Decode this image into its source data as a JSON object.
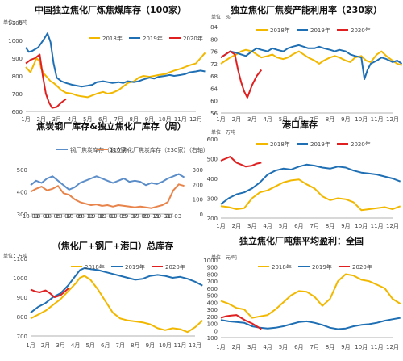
{
  "chart_data": [
    {
      "type": "line",
      "title": "中国独立焦化厂炼焦煤库存（100家）",
      "unit_label": "单位：万吨",
      "categories": [
        "1月",
        "2月",
        "3月",
        "4月",
        "5月",
        "6月",
        "7月",
        "8月",
        "9月",
        "10月",
        "11月",
        "12月"
      ],
      "ylim": [
        600,
        1100
      ],
      "yticks": [
        600,
        700,
        800,
        900,
        1000,
        1100
      ],
      "grid": false,
      "legend_position": "top-right",
      "series": [
        {
          "name": "2018年",
          "color": "#F2B800",
          "x": [
            0,
            0.3,
            0.5,
            0.7,
            0.9,
            1,
            1.2,
            1.4,
            1.6,
            1.8,
            2,
            2.3,
            2.6,
            3,
            3.3,
            3.6,
            4,
            4.3,
            4.6,
            5,
            5.3,
            5.6,
            6,
            6.3,
            6.6,
            7,
            7.3,
            7.6,
            8,
            8.3,
            8.6,
            9,
            9.3,
            9.6,
            10,
            10.3,
            10.6,
            11,
            11.3,
            11.6
          ],
          "values": [
            850,
            820,
            860,
            900,
            880,
            840,
            810,
            790,
            770,
            760,
            745,
            720,
            705,
            700,
            690,
            685,
            680,
            690,
            700,
            710,
            700,
            705,
            720,
            740,
            760,
            770,
            790,
            800,
            795,
            800,
            805,
            810,
            820,
            830,
            840,
            850,
            860,
            870,
            900,
            930
          ]
        },
        {
          "name": "2019年",
          "color": "#1F6FB4",
          "x": [
            0,
            0.2,
            0.4,
            0.6,
            0.8,
            1,
            1.2,
            1.4,
            1.6,
            1.8,
            2,
            2.3,
            2.6,
            3,
            3.3,
            3.6,
            4,
            4.3,
            4.6,
            5,
            5.3,
            5.6,
            6,
            6.3,
            6.6,
            7,
            7.3,
            7.6,
            8,
            8.3,
            8.6,
            9,
            9.3,
            9.6,
            10,
            10.3,
            10.6,
            11,
            11.3,
            11.6
          ],
          "values": [
            960,
            935,
            940,
            950,
            960,
            985,
            1010,
            1040,
            990,
            870,
            790,
            770,
            760,
            750,
            745,
            740,
            745,
            750,
            765,
            770,
            765,
            760,
            765,
            760,
            770,
            765,
            770,
            780,
            790,
            785,
            795,
            800,
            805,
            800,
            805,
            810,
            820,
            825,
            830,
            825
          ]
        },
        {
          "name": "2020年",
          "color": "#E02020",
          "x": [
            0,
            0.3,
            0.6,
            0.9,
            1.1,
            1.3,
            1.5,
            1.7,
            2,
            2.3,
            2.6
          ],
          "values": [
            870,
            890,
            900,
            920,
            800,
            700,
            650,
            620,
            625,
            650,
            670
          ]
        }
      ]
    },
    {
      "type": "line",
      "title": "独立焦化厂焦炭产能利用率（230家）",
      "unit_label": "单位：%",
      "categories": [
        "1月",
        "2月",
        "3月",
        "4月",
        "5月",
        "6月",
        "7月",
        "8月",
        "9月",
        "10月",
        "11月",
        "12月"
      ],
      "ylim": [
        56,
        84
      ],
      "yticks": [
        56,
        60,
        64,
        68,
        72,
        76,
        80,
        84
      ],
      "grid": false,
      "legend_position": "top-right",
      "series": [
        {
          "name": "2018年",
          "color": "#F2B800",
          "x": [
            0,
            0.3,
            0.6,
            1,
            1.3,
            1.6,
            2,
            2.3,
            2.6,
            3,
            3.3,
            3.6,
            4,
            4.3,
            4.6,
            5,
            5.3,
            5.6,
            6,
            6.3,
            6.6,
            7,
            7.3,
            7.6,
            8,
            8.3,
            8.6,
            9,
            9.3,
            9.6,
            10,
            10.3,
            10.6,
            11,
            11.3,
            11.6
          ],
          "values": [
            72,
            73,
            74,
            75,
            76,
            76.5,
            76,
            75,
            74,
            74.5,
            75,
            74,
            73.5,
            74,
            75,
            76,
            75,
            74,
            73,
            72,
            73,
            74,
            74.5,
            74,
            73,
            72.5,
            74,
            74.5,
            73,
            72.5,
            75,
            76,
            74.5,
            73,
            72,
            71.5
          ]
        },
        {
          "name": "2019年",
          "color": "#1F6FB4",
          "x": [
            0,
            0.3,
            0.6,
            1,
            1.3,
            1.6,
            2,
            2.3,
            2.6,
            3,
            3.3,
            3.6,
            4,
            4.3,
            4.6,
            5,
            5.3,
            5.6,
            6,
            6.3,
            6.6,
            7,
            7.3,
            7.6,
            8,
            8.3,
            8.6,
            9,
            9.2,
            9.4,
            9.6,
            10,
            10.3,
            10.6,
            11,
            11.3,
            11.6
          ],
          "values": [
            74,
            75,
            76,
            75.5,
            75,
            74.5,
            76,
            77,
            76.5,
            76,
            77,
            76.5,
            76,
            77,
            77.5,
            78,
            77.5,
            77,
            77,
            77.5,
            77,
            76.5,
            76,
            76.5,
            76,
            75,
            74.5,
            74,
            67,
            70,
            72,
            73,
            74,
            73.5,
            72.5,
            73,
            72
          ]
        },
        {
          "name": "2020年",
          "color": "#E02020",
          "x": [
            0,
            0.3,
            0.6,
            0.9,
            1.1,
            1.3,
            1.5,
            1.7,
            2,
            2.3,
            2.6
          ],
          "values": [
            74,
            75,
            76,
            75,
            70,
            66,
            63,
            61,
            65,
            68,
            70
          ]
        }
      ]
    },
    {
      "type": "line",
      "title": "焦炭钢厂库存&独立焦化厂库存（周）",
      "categories": [
        "18-01",
        "18-03",
        "18-05",
        "18-07",
        "18-09",
        "18-11",
        "19-01",
        "19-03",
        "19-05",
        "19-07",
        "19-09",
        "19-11",
        "20-01",
        "20-03"
      ],
      "ylim": [
        300,
        500
      ],
      "yticks": [
        300,
        400,
        500
      ],
      "y2lim": [
        0,
        300
      ],
      "y2ticks": [
        0,
        100,
        200,
        300
      ],
      "grid": false,
      "legend_position": "top-left",
      "series": [
        {
          "name": "钢厂焦炭库存（110家）",
          "color": "#5B8DC9",
          "axis": "left",
          "x": [
            0,
            0.5,
            1,
            1.5,
            2,
            2.5,
            3,
            3.5,
            4,
            4.5,
            5,
            5.5,
            6,
            6.5,
            7,
            7.5,
            8,
            8.5,
            9,
            9.5,
            10,
            10.5,
            11,
            11.5,
            12,
            12.5,
            13,
            13.5,
            14
          ],
          "values": [
            430,
            450,
            440,
            460,
            470,
            450,
            430,
            410,
            420,
            440,
            450,
            460,
            470,
            460,
            450,
            440,
            450,
            460,
            445,
            450,
            445,
            430,
            440,
            435,
            445,
            460,
            470,
            480,
            465
          ]
        },
        {
          "name": "独立焦化厂焦炭库存（230家）（右轴）",
          "color": "#E8834A",
          "axis": "right",
          "x": [
            0,
            0.5,
            1,
            1.5,
            2,
            2.5,
            3,
            3.5,
            4,
            4.5,
            5,
            5.5,
            6,
            6.5,
            7,
            7.5,
            8,
            8.5,
            9,
            9.5,
            10,
            10.5,
            11,
            11.5,
            12,
            12.5,
            13,
            13.5,
            14
          ],
          "values": [
            150,
            170,
            185,
            160,
            170,
            190,
            140,
            130,
            100,
            80,
            70,
            60,
            65,
            55,
            60,
            50,
            60,
            55,
            50,
            45,
            50,
            45,
            40,
            50,
            60,
            80,
            160,
            200,
            190
          ]
        }
      ]
    },
    {
      "type": "line",
      "title": "港口库存",
      "unit_label": "单位：万吨",
      "categories": [
        "1月",
        "2月",
        "3月",
        "4月",
        "5月",
        "6月",
        "7月",
        "8月",
        "9月",
        "10月",
        "11月",
        "12月"
      ],
      "ylim": [
        200,
        600
      ],
      "yticks": [
        200,
        300,
        400,
        500,
        600
      ],
      "grid": false,
      "legend_position": "top-right",
      "series": [
        {
          "name": "2018年",
          "color": "#F2B800",
          "x": [
            0,
            0.5,
            1,
            1.5,
            2,
            2.5,
            3,
            3.5,
            4,
            4.5,
            5,
            5.5,
            6,
            6.5,
            7,
            7.5,
            8,
            8.5,
            9,
            9.5,
            10,
            10.5,
            11,
            11.5
          ],
          "values": [
            260,
            255,
            245,
            250,
            300,
            330,
            340,
            360,
            380,
            390,
            395,
            370,
            350,
            310,
            290,
            300,
            295,
            280,
            240,
            245,
            250,
            255,
            245,
            260
          ]
        },
        {
          "name": "2019年",
          "color": "#1F6FB4",
          "x": [
            0,
            0.5,
            1,
            1.5,
            2,
            2.5,
            3,
            3.5,
            4,
            4.5,
            5,
            5.5,
            6,
            6.5,
            7,
            7.5,
            8,
            8.5,
            9,
            9.5,
            10,
            10.5,
            11,
            11.5
          ],
          "values": [
            270,
            300,
            320,
            330,
            350,
            380,
            420,
            440,
            450,
            445,
            460,
            470,
            465,
            455,
            450,
            460,
            455,
            440,
            430,
            425,
            420,
            410,
            400,
            385
          ]
        },
        {
          "name": "2020年",
          "color": "#E02020",
          "x": [
            0,
            0.3,
            0.6,
            1,
            1.3,
            1.6,
            2,
            2.3,
            2.6
          ],
          "values": [
            490,
            500,
            510,
            480,
            470,
            460,
            465,
            475,
            480
          ]
        }
      ]
    },
    {
      "type": "line",
      "title": "（焦化厂+钢厂+港口）总库存",
      "unit_label": "单位：万吨",
      "categories": [
        "1月",
        "2月",
        "3月",
        "4月",
        "5月",
        "6月",
        "7月",
        "8月",
        "9月",
        "10月",
        "11月",
        "12月"
      ],
      "ylim": [
        700,
        1100
      ],
      "yticks": [
        700,
        800,
        900,
        1000,
        1100
      ],
      "grid": false,
      "legend_position": "top-center",
      "series": [
        {
          "name": "2018年",
          "color": "#F2B800",
          "x": [
            0,
            0.5,
            1,
            1.5,
            2,
            2.5,
            3,
            3.3,
            3.6,
            4,
            4.5,
            5,
            5.5,
            6,
            6.5,
            7,
            7.5,
            8,
            8.5,
            9,
            9.5,
            10,
            10.5,
            11,
            11.5
          ],
          "values": [
            790,
            810,
            830,
            860,
            890,
            930,
            970,
            1000,
            1010,
            990,
            940,
            880,
            820,
            790,
            780,
            775,
            770,
            760,
            740,
            730,
            740,
            735,
            720,
            745,
            780
          ]
        },
        {
          "name": "2019年",
          "color": "#1F6FB4",
          "x": [
            0,
            0.5,
            1,
            1.5,
            2,
            2.5,
            3,
            3.3,
            3.6,
            4,
            4.5,
            5,
            5.5,
            6,
            6.5,
            7,
            7.5,
            8,
            8.5,
            9,
            9.5,
            10,
            10.5,
            11,
            11.5
          ],
          "values": [
            820,
            850,
            870,
            900,
            920,
            960,
            1010,
            1040,
            1050,
            1045,
            1040,
            1030,
            1020,
            1010,
            1000,
            990,
            995,
            1010,
            1015,
            1010,
            1000,
            1005,
            995,
            980,
            960
          ]
        },
        {
          "name": "2020年",
          "color": "#E02020",
          "x": [
            0,
            0.3,
            0.6,
            1,
            1.3,
            1.6,
            2,
            2.3,
            2.6
          ],
          "values": [
            940,
            930,
            925,
            935,
            920,
            900,
            910,
            930,
            950
          ]
        }
      ]
    },
    {
      "type": "line",
      "title": "独立焦化厂吨焦平均盈利：全国",
      "unit_label": "单位：元/吨",
      "categories": [
        "1月",
        "2月",
        "3月",
        "4月",
        "5月",
        "6月",
        "7月",
        "8月",
        "9月",
        "10月",
        "11月",
        "12月"
      ],
      "ylim": [
        -100,
        1000
      ],
      "yticks": [
        -100,
        0,
        100,
        200,
        300,
        400,
        500,
        600,
        700,
        800,
        900,
        1000
      ],
      "grid": false,
      "legend_position": "top-center",
      "series": [
        {
          "name": "2018年",
          "color": "#F2B800",
          "x": [
            0,
            0.5,
            1,
            1.5,
            2,
            2.5,
            3,
            3.5,
            4,
            4.5,
            5,
            5.5,
            6,
            6.5,
            7,
            7.5,
            8,
            8.5,
            9,
            9.5,
            10,
            10.5,
            11,
            11.5
          ],
          "values": [
            420,
            380,
            320,
            300,
            180,
            200,
            220,
            300,
            400,
            500,
            560,
            550,
            480,
            350,
            450,
            700,
            800,
            780,
            720,
            700,
            650,
            600,
            450,
            380
          ]
        },
        {
          "name": "2019年",
          "color": "#1F6FB4",
          "x": [
            0,
            0.5,
            1,
            1.5,
            2,
            2.5,
            3,
            3.5,
            4,
            4.5,
            5,
            5.5,
            6,
            6.5,
            7,
            7.5,
            8,
            8.5,
            9,
            9.5,
            10,
            10.5,
            11,
            11.5
          ],
          "values": [
            150,
            130,
            120,
            110,
            60,
            40,
            30,
            40,
            60,
            90,
            120,
            130,
            110,
            80,
            40,
            20,
            30,
            60,
            80,
            90,
            110,
            140,
            160,
            180
          ]
        },
        {
          "name": "2020年",
          "color": "#E02020",
          "x": [
            0,
            0.3,
            0.6,
            1,
            1.3,
            1.6,
            2,
            2.3,
            2.6
          ],
          "values": [
            180,
            200,
            210,
            220,
            180,
            140,
            100,
            60,
            20
          ]
        }
      ]
    }
  ]
}
